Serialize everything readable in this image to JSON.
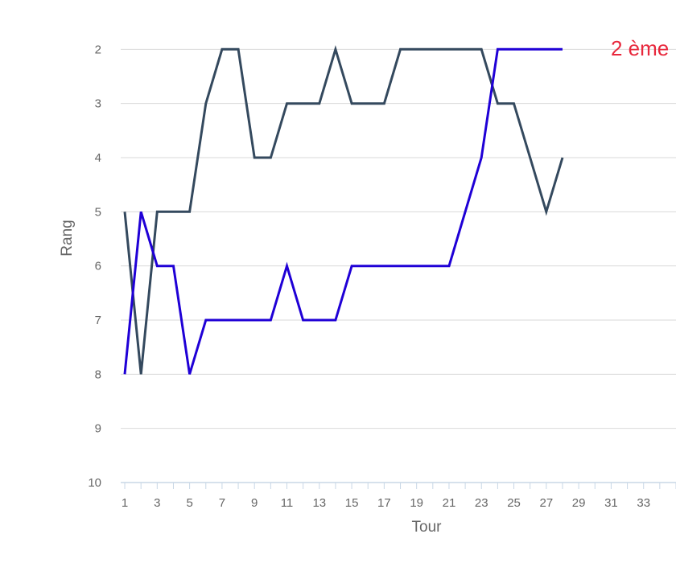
{
  "chart_data": {
    "type": "line",
    "xlabel": "Tour",
    "ylabel": "Rang",
    "x_ticks": [
      1,
      3,
      5,
      7,
      9,
      11,
      13,
      15,
      17,
      19,
      21,
      23,
      25,
      27,
      29,
      31,
      33
    ],
    "y_ticks": [
      2,
      3,
      4,
      5,
      6,
      7,
      8,
      9,
      10
    ],
    "xlim": [
      0.75,
      35
    ],
    "ylim": [
      1,
      10
    ],
    "y_inverted": true,
    "grid": true,
    "x": [
      1,
      2,
      3,
      4,
      5,
      6,
      7,
      8,
      9,
      10,
      11,
      12,
      13,
      14,
      15,
      16,
      17,
      18,
      19,
      20,
      21,
      22,
      23,
      24,
      25,
      26,
      27,
      28
    ],
    "series": [
      {
        "color": "#34495e",
        "values": [
          5,
          8,
          5,
          5,
          5,
          3,
          2,
          2,
          4,
          4,
          3,
          3,
          3,
          2,
          3,
          3,
          3,
          2,
          2,
          2,
          2,
          2,
          2,
          3,
          3,
          4,
          5,
          4
        ]
      },
      {
        "color": "#1f00d6",
        "values": [
          8,
          5,
          6,
          6,
          8,
          7,
          7,
          7,
          7,
          7,
          6,
          7,
          7,
          7,
          6,
          6,
          6,
          6,
          6,
          6,
          6,
          5,
          4,
          2,
          2,
          2,
          2,
          2
        ]
      }
    ],
    "annotations": [
      {
        "text": "2 ème",
        "color": "#e8283c"
      }
    ]
  }
}
